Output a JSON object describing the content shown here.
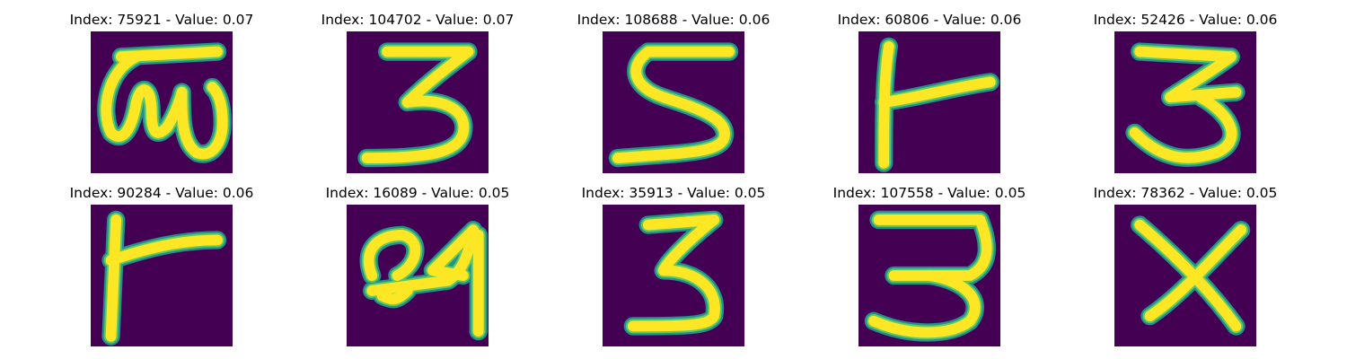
{
  "colors": {
    "background": "#440154",
    "stroke_outer": "#21918c",
    "stroke_mid": "#5ec962",
    "stroke_core": "#fde725"
  },
  "panels": [
    {
      "title": "Index: 75921 - Value: 0.07",
      "glyph": "w-with-bar"
    },
    {
      "title": "Index: 104702 - Value: 0.07",
      "glyph": "three"
    },
    {
      "title": "Index: 108688 - Value: 0.06",
      "glyph": "five"
    },
    {
      "title": "Index: 60806 - Value: 0.06",
      "glyph": "t-left"
    },
    {
      "title": "Index: 52426 - Value: 0.06",
      "glyph": "three"
    },
    {
      "title": "Index: 90284 - Value: 0.06",
      "glyph": "t-left"
    },
    {
      "title": "Index: 16089 - Value: 0.05",
      "glyph": "scribble"
    },
    {
      "title": "Index: 35913 - Value: 0.05",
      "glyph": "three"
    },
    {
      "title": "Index: 107558 - Value: 0.05",
      "glyph": "three"
    },
    {
      "title": "Index: 78362 - Value: 0.05",
      "glyph": "x"
    }
  ]
}
